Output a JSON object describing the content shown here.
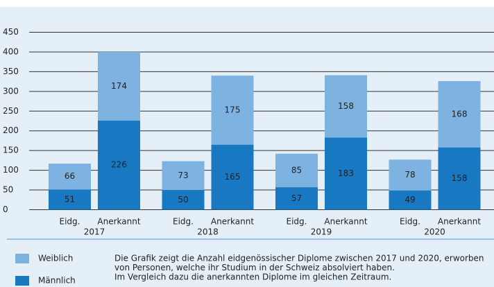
{
  "chart_data": {
    "type": "stacked_bar",
    "categories": [
      "Eidg.",
      "Anerkannt",
      "Eidg.",
      "Anerkannt",
      "Eidg.",
      "Anerkannt",
      "Eidg.",
      "Anerkannt"
    ],
    "groups": [
      "2017",
      "2018",
      "2019",
      "2020"
    ],
    "series": [
      {
        "name": "Männlich",
        "color": "#1878c2",
        "values": [
          51,
          226,
          50,
          165,
          57,
          183,
          49,
          158
        ]
      },
      {
        "name": "Weiblich",
        "color": "#7eb2e1",
        "values": [
          66,
          174,
          73,
          175,
          85,
          158,
          78,
          168
        ]
      }
    ],
    "ylim": [
      0,
      450
    ],
    "yticks": [
      0,
      50,
      100,
      150,
      200,
      250,
      300,
      350,
      400,
      450
    ],
    "grid": true,
    "description": [
      "Die Grafik zeigt die Anzahl eidgenössischer Diplome zwischen 2017 und 2020, erworben",
      "von Personen, welche ihr Studium in der Schweiz absolviert haben.",
      "Im Vergleich dazu die anerkannten Diplome im gleichen Zeitraum."
    ]
  }
}
